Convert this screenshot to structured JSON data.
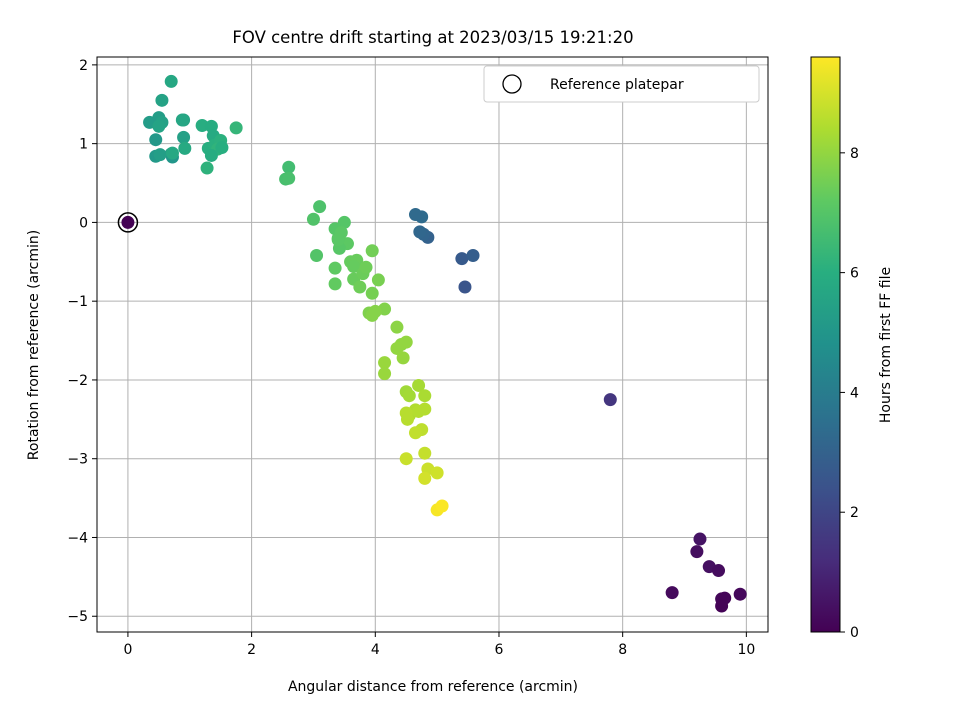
{
  "chart_data": {
    "type": "scatter",
    "title": "FOV centre drift starting at 2023/03/15 19:21:20",
    "xlabel": "Angular distance from reference (arcmin)",
    "ylabel": "Rotation from reference (arcmin)",
    "xlim": [
      -0.5,
      10.35
    ],
    "ylim": [
      -5.2,
      2.1
    ],
    "xticks": [
      0,
      2,
      4,
      6,
      8,
      10
    ],
    "yticks": [
      2,
      1,
      0,
      -1,
      -2,
      -3,
      -4,
      -5
    ],
    "xtick_labels": [
      "0",
      "2",
      "4",
      "6",
      "8",
      "10"
    ],
    "ytick_labels": [
      "2",
      "1",
      "0",
      "−1",
      "−2",
      "−3",
      "−4",
      "−5"
    ],
    "grid": true,
    "legend": {
      "location": "top-right",
      "entries": [
        "Reference platepar"
      ]
    },
    "reference_point": {
      "x": 0,
      "y": 0,
      "label": "Reference platepar"
    },
    "colorbar": {
      "label": "Hours from first FF file",
      "range": [
        0,
        9.6
      ],
      "ticks": [
        0,
        2,
        4,
        6,
        8
      ],
      "tick_labels": [
        "0",
        "2",
        "4",
        "6",
        "8"
      ],
      "colormap": "viridis"
    },
    "series": [
      {
        "x": [
          0.0,
          9.25,
          9.2,
          9.4,
          9.55,
          9.9,
          8.8,
          9.6,
          9.65,
          9.6,
          7.8,
          5.45,
          5.4,
          5.58,
          4.85,
          4.78,
          4.72,
          4.75,
          4.65,
          0.45,
          0.5,
          0.55,
          0.7,
          0.7,
          0.72,
          0.9,
          0.9,
          0.92,
          0.35,
          0.45,
          0.52,
          0.55,
          0.88,
          0.5,
          0.72,
          1.2,
          1.35,
          1.38,
          1.3,
          1.4,
          1.5,
          1.28,
          1.45,
          1.35,
          1.52,
          1.75,
          2.6,
          2.55,
          2.6,
          3.1,
          3.0,
          3.05,
          3.5,
          3.35,
          3.4,
          3.45,
          3.55,
          3.42,
          3.4,
          3.35,
          3.35,
          3.6,
          3.7,
          3.65,
          3.65,
          3.8,
          3.85,
          3.95,
          3.75,
          3.95,
          4.05,
          3.9,
          4.15,
          3.95,
          4.0,
          4.35,
          4.42,
          4.5,
          4.35,
          4.45,
          4.15,
          4.15,
          4.5,
          4.55,
          4.7,
          4.8,
          4.55,
          4.65,
          4.7,
          4.8,
          4.5,
          4.52,
          4.75,
          4.65,
          4.8,
          4.5,
          4.85,
          5.0,
          4.8,
          5.0,
          5.08
        ],
        "y": [
          0.0,
          -4.02,
          -4.18,
          -4.37,
          -4.42,
          -4.72,
          -4.7,
          -4.78,
          -4.77,
          -4.87,
          -2.25,
          -0.82,
          -0.46,
          -0.42,
          -0.19,
          -0.15,
          -0.12,
          0.07,
          0.1,
          1.05,
          1.33,
          1.55,
          1.79,
          0.87,
          0.83,
          1.3,
          1.08,
          0.94,
          1.27,
          0.84,
          0.86,
          1.27,
          1.3,
          1.22,
          0.88,
          1.23,
          1.22,
          1.1,
          0.94,
          0.98,
          1.04,
          0.69,
          0.93,
          0.85,
          0.95,
          1.2,
          0.7,
          0.55,
          0.56,
          0.2,
          0.04,
          -0.42,
          0.0,
          -0.08,
          -0.2,
          -0.13,
          -0.27,
          -0.33,
          -0.22,
          -0.58,
          -0.78,
          -0.5,
          -0.48,
          -0.56,
          -0.72,
          -0.65,
          -0.57,
          -0.36,
          -0.82,
          -0.9,
          -0.73,
          -1.15,
          -1.1,
          -1.18,
          -1.13,
          -1.33,
          -1.55,
          -1.52,
          -1.6,
          -1.72,
          -1.78,
          -1.92,
          -2.15,
          -2.2,
          -2.07,
          -2.2,
          -2.45,
          -2.38,
          -2.4,
          -2.37,
          -2.42,
          -2.5,
          -2.63,
          -2.67,
          -2.93,
          -3.0,
          -3.13,
          -3.18,
          -3.25,
          -3.65,
          -3.6
        ],
        "hours": [
          0.0,
          0.5,
          0.35,
          0.4,
          0.3,
          0.2,
          0.25,
          0.15,
          0.1,
          0.05,
          1.5,
          2.5,
          2.7,
          2.85,
          3.0,
          3.1,
          3.2,
          3.35,
          3.3,
          5.1,
          5.3,
          5.5,
          5.7,
          5.2,
          5.0,
          5.6,
          5.4,
          5.8,
          5.25,
          5.15,
          5.35,
          5.45,
          5.65,
          5.55,
          5.75,
          5.95,
          5.9,
          5.85,
          6.0,
          6.05,
          6.1,
          6.15,
          6.2,
          5.9,
          6.0,
          6.3,
          6.6,
          6.7,
          6.75,
          6.85,
          6.9,
          6.95,
          7.0,
          7.0,
          7.05,
          7.1,
          7.15,
          7.05,
          7.1,
          7.2,
          7.25,
          7.3,
          7.35,
          7.3,
          7.35,
          7.4,
          7.45,
          7.5,
          7.45,
          7.55,
          7.6,
          7.7,
          7.75,
          7.8,
          7.8,
          7.9,
          7.95,
          8.0,
          8.0,
          8.05,
          8.1,
          8.1,
          8.2,
          8.25,
          8.3,
          8.35,
          8.4,
          8.45,
          8.5,
          8.5,
          8.55,
          8.55,
          8.65,
          8.7,
          8.75,
          8.8,
          8.85,
          8.9,
          8.95,
          9.5,
          9.55
        ]
      }
    ]
  }
}
